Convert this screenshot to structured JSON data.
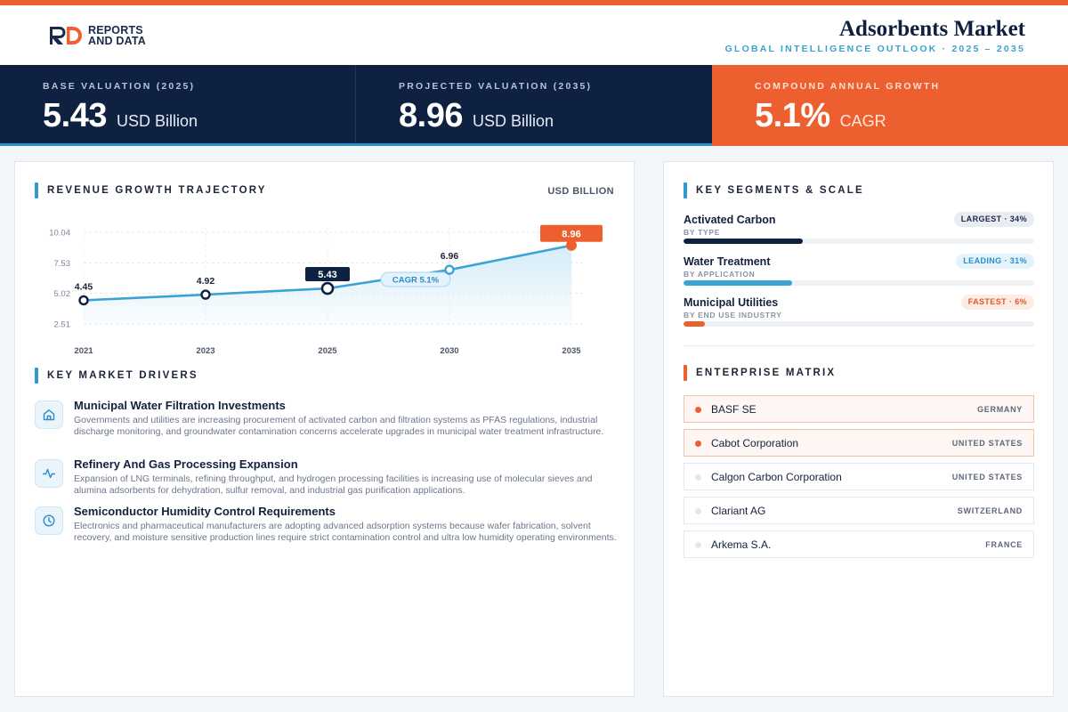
{
  "brand": {
    "logo_line1": "REPORTS",
    "logo_line2": "AND DATA"
  },
  "header": {
    "title": "Adsorbents Market",
    "subtitle": "GLOBAL INTELLIGENCE OUTLOOK  ·  2025 – 2035"
  },
  "kpis": [
    {
      "label": "BASE VALUATION (2025)",
      "value": "5.43",
      "unit": "USD Billion"
    },
    {
      "label": "PROJECTED VALUATION (2035)",
      "value": "8.96",
      "unit": "USD Billion"
    },
    {
      "label": "COMPOUND ANNUAL GROWTH",
      "value": "5.1%",
      "unit": "CAGR"
    }
  ],
  "revenue": {
    "title": "REVENUE GROWTH TRAJECTORY",
    "unit_label": "USD BILLION",
    "cagr_label": "CAGR 5.1%"
  },
  "chart_data": {
    "type": "line",
    "x": [
      "2021",
      "2023",
      "2025",
      "2030",
      "2035"
    ],
    "values": [
      4.45,
      4.92,
      5.43,
      6.96,
      8.96
    ],
    "value_labels": [
      "4.45",
      "4.92",
      "5.43",
      "6.96",
      "8.96"
    ],
    "y_ticks": [
      "10.04",
      "7.53",
      "5.02",
      "2.51"
    ],
    "y_tick_values": [
      10.04,
      7.53,
      5.02,
      2.51
    ],
    "ylim": [
      2.51,
      10.04
    ],
    "highlight": {
      "base_index": 2,
      "end_index": 4
    },
    "grid": true,
    "colors": {
      "line": "#3aa3d6",
      "area_top": "#d3ebf8",
      "base_marker": "#0f2140",
      "end_marker": "#ee5f2f"
    }
  },
  "drivers": {
    "title": "KEY MARKET DRIVERS",
    "items": [
      {
        "icon": "home-icon",
        "title": "Municipal Water Filtration Investments",
        "desc": "Governments and utilities are increasing procurement of activated carbon and filtration systems as PFAS regulations, industrial discharge monitoring, and groundwater contamination concerns accelerate upgrades in municipal water treatment infrastructure."
      },
      {
        "icon": "activity-icon",
        "title": "Refinery And Gas Processing Expansion",
        "desc": "Expansion of LNG terminals, refining throughput, and hydrogen processing facilities is increasing use of molecular sieves and alumina adsorbents for dehydration, sulfur removal, and industrial gas purification applications."
      },
      {
        "icon": "clock-icon",
        "title": "Semiconductor Humidity Control Requirements",
        "desc": "Electronics and pharmaceutical manufacturers are adopting advanced adsorption systems because wafer fabrication, solvent recovery, and moisture sensitive production lines require strict contamination control and ultra low humidity operating environments."
      }
    ]
  },
  "segments": {
    "title": "KEY SEGMENTS & SCALE",
    "items": [
      {
        "name": "Activated Carbon",
        "sub": "BY TYPE",
        "badge": "LARGEST · 34%",
        "share": 0.34,
        "color": "#0f2140",
        "badge_bg": "#e9edf3",
        "badge_fg": "#1c2a44"
      },
      {
        "name": "Water Treatment",
        "sub": "BY APPLICATION",
        "badge": "LEADING · 31%",
        "share": 0.31,
        "color": "#3aa3d6",
        "badge_bg": "#e4f3fb",
        "badge_fg": "#2a8fc4"
      },
      {
        "name": "Municipal Utilities",
        "sub": "BY END USE INDUSTRY",
        "badge": "FASTEST · 6%",
        "share": 0.06,
        "color": "#ee5f2f",
        "badge_bg": "#fdece4",
        "badge_fg": "#e0572a"
      }
    ]
  },
  "enterprise": {
    "title": "ENTERPRISE MATRIX",
    "items": [
      {
        "name": "BASF SE",
        "country": "GERMANY",
        "highlight": true
      },
      {
        "name": "Cabot Corporation",
        "country": "UNITED STATES",
        "highlight": true
      },
      {
        "name": "Calgon Carbon Corporation",
        "country": "UNITED STATES",
        "highlight": false
      },
      {
        "name": "Clariant AG",
        "country": "SWITZERLAND",
        "highlight": false
      },
      {
        "name": "Arkema S.A.",
        "country": "FRANCE",
        "highlight": false
      }
    ]
  }
}
